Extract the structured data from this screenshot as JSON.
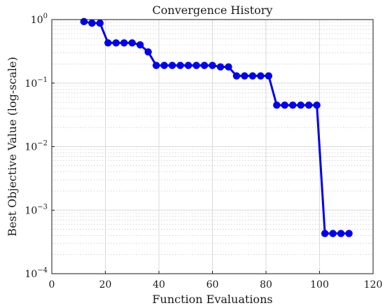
{
  "chart_data": {
    "type": "line",
    "title": "Convergence History",
    "xlabel": "Function Evaluations",
    "ylabel": "Best Objective Value (log-scale)",
    "xlim": [
      0,
      120
    ],
    "ylim": [
      0.0001,
      1
    ],
    "yscale": "log",
    "grid": true,
    "legend": "none",
    "line_color": "#0000ee",
    "x_ticks": [
      0,
      20,
      40,
      60,
      80,
      100,
      120
    ],
    "y_ticks": [
      {
        "value": 1,
        "base": "10",
        "exp": "0"
      },
      {
        "value": 0.1,
        "base": "10",
        "exp": "−1"
      },
      {
        "value": 0.01,
        "base": "10",
        "exp": "−2"
      },
      {
        "value": 0.001,
        "base": "10",
        "exp": "−3"
      },
      {
        "value": 0.0001,
        "base": "10",
        "exp": "−4"
      }
    ],
    "series": [
      {
        "x": [
          12,
          15,
          18,
          21,
          24,
          27,
          30,
          33,
          36,
          39,
          42,
          45,
          48,
          51,
          54,
          57,
          60,
          63,
          66,
          69,
          72,
          75,
          78,
          81,
          84,
          87,
          90,
          93,
          96,
          99,
          102,
          105,
          108,
          111
        ],
        "y": [
          0.93,
          0.88,
          0.88,
          0.43,
          0.43,
          0.43,
          0.43,
          0.4,
          0.31,
          0.19,
          0.19,
          0.19,
          0.19,
          0.19,
          0.19,
          0.19,
          0.19,
          0.18,
          0.18,
          0.13,
          0.13,
          0.13,
          0.13,
          0.13,
          0.045,
          0.045,
          0.045,
          0.045,
          0.045,
          0.045,
          0.00043,
          0.00043,
          0.00043,
          0.00043
        ]
      }
    ]
  }
}
